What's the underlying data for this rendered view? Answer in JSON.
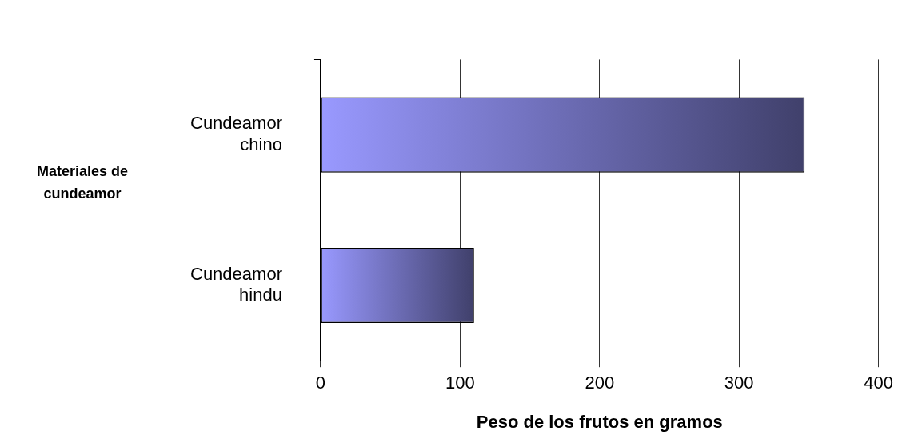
{
  "chart_data": {
    "type": "bar",
    "orientation": "horizontal",
    "xlabel": "Peso de los frutos en gramos",
    "ylabel": "Materiales de cundeamor",
    "categories": [
      "Cundeamor chino",
      "Cundeamor hindu"
    ],
    "values": [
      347,
      110
    ],
    "color": "#9999ff",
    "xlim": [
      0,
      400
    ],
    "xticks": [
      0,
      100,
      200,
      300,
      400
    ],
    "grid": "x",
    "legend": false
  }
}
